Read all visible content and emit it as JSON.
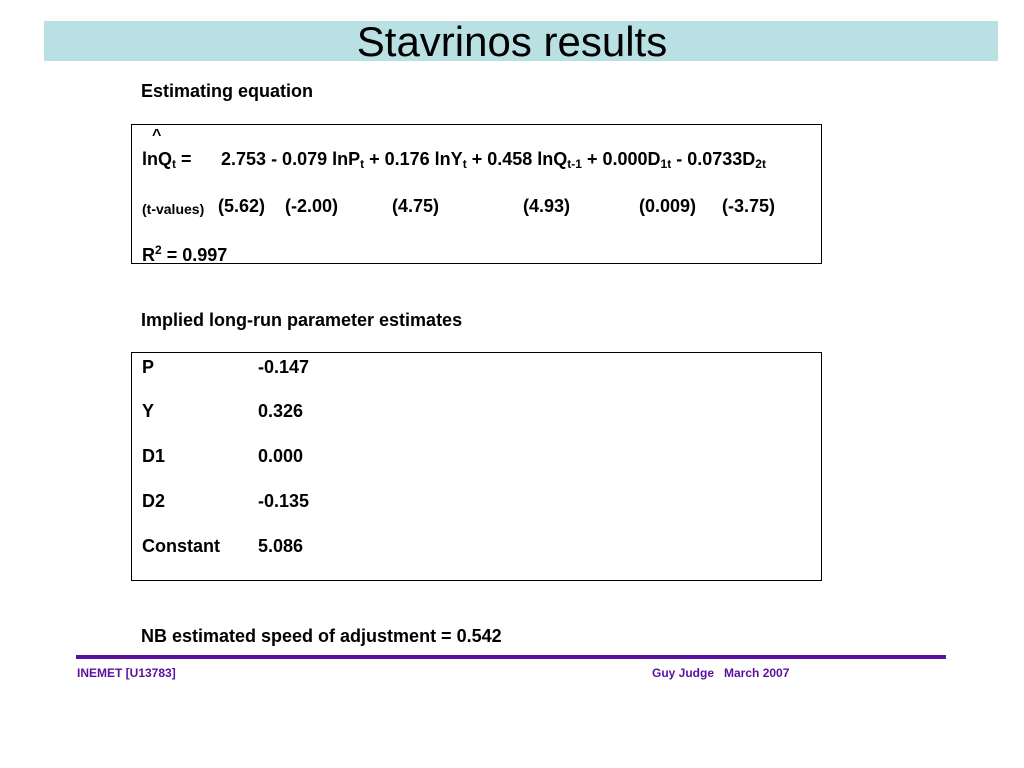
{
  "slide": {
    "title": "Stavrinos results"
  },
  "estimating": {
    "heading": "Estimating equation",
    "hat": "^",
    "eq_lhs": "lnQ",
    "eq_lhs_sub": "t",
    "eq_equals": "=",
    "eq_constant": "2.753",
    "eq_term1": "- 0.079 lnP",
    "eq_term1_sub": "t",
    "eq_term2": "+ 0.176 lnY",
    "eq_term2_sub": "t",
    "eq_term3": "+ 0.458 lnQ",
    "eq_term3_sub": "t-1",
    "eq_term4": "+ 0.000D",
    "eq_term4_sub": "1t",
    "eq_term5": "- 0.0733D",
    "eq_term5_sub": "2t",
    "tvalues_label": "(t-values)",
    "tvalues": [
      "(5.62)",
      "(-2.00)",
      "(4.75)",
      "(4.93)",
      "(0.009)",
      "(-3.75)"
    ],
    "r2_label": "R",
    "r2_sup": "2",
    "r2_value": "= 0.997"
  },
  "longrun": {
    "heading": "Implied long-run parameter estimates",
    "rows": [
      {
        "name": "P",
        "value": "-0.147"
      },
      {
        "name": "Y",
        "value": "0.326"
      },
      {
        "name": "D1",
        "value": "0.000"
      },
      {
        "name": "D2",
        "value": "-0.135"
      },
      {
        "name": "Constant",
        "value": "5.086"
      }
    ]
  },
  "note": {
    "text": "NB estimated speed of adjustment = 0.542"
  },
  "footer": {
    "left": "INEMET [U13783]",
    "right": "Guy Judge   March 2007",
    "color": "#5a10a0"
  },
  "colors": {
    "title_bar": "#b9e0e3"
  }
}
